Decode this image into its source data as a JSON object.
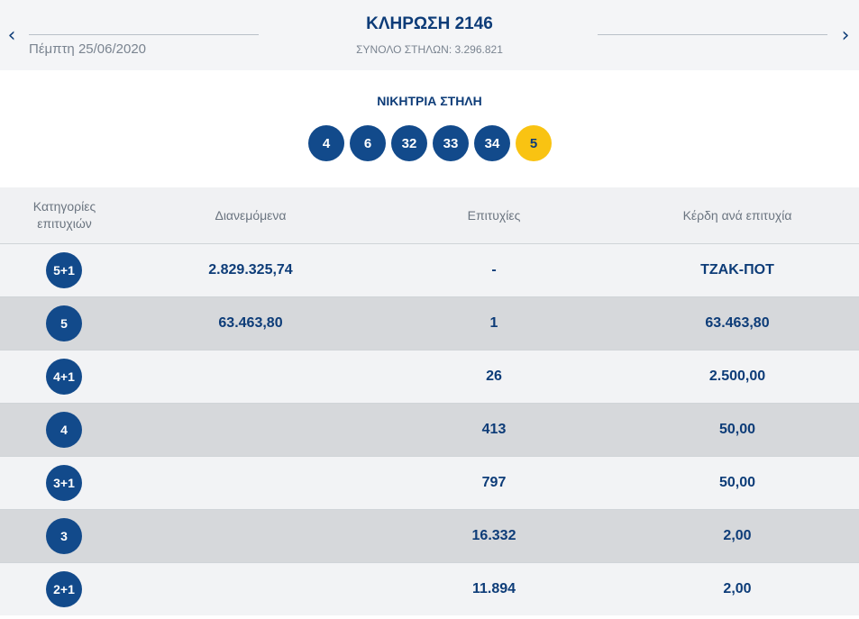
{
  "header": {
    "prev_icon": "chevron-left-icon",
    "next_icon": "chevron-right-icon",
    "date": "Πέμπτη 25/06/2020",
    "title": "ΚΛΗΡΩΣΗ 2146",
    "total_columns": "ΣΥΝΟΛΟ ΣΤΗΛΩΝ: 3.296.821"
  },
  "winning": {
    "label": "ΝΙΚΗΤΡΙΑ ΣΤΗΛΗ",
    "numbers": [
      "4",
      "6",
      "32",
      "33",
      "34"
    ],
    "bonus": "5",
    "ball_color": "#124a8b",
    "bonus_color": "#f9c312"
  },
  "table": {
    "headers": {
      "category": "Κατηγορίες επιτυχιών",
      "distributed": "Διανεμόμενα",
      "wins": "Επιτυχίες",
      "prize": "Κέρδη ανά επιτυχία"
    },
    "rows": [
      {
        "category": "5+1",
        "distributed": "2.829.325,74",
        "wins": "-",
        "prize": "ΤΖΑΚ-ΠΟΤ"
      },
      {
        "category": "5",
        "distributed": "63.463,80",
        "wins": "1",
        "prize": "63.463,80"
      },
      {
        "category": "4+1",
        "distributed": "",
        "wins": "26",
        "prize": "2.500,00"
      },
      {
        "category": "4",
        "distributed": "",
        "wins": "413",
        "prize": "50,00"
      },
      {
        "category": "3+1",
        "distributed": "",
        "wins": "797",
        "prize": "50,00"
      },
      {
        "category": "3",
        "distributed": "",
        "wins": "16.332",
        "prize": "2,00"
      },
      {
        "category": "2+1",
        "distributed": "",
        "wins": "11.894",
        "prize": "2,00"
      }
    ]
  }
}
